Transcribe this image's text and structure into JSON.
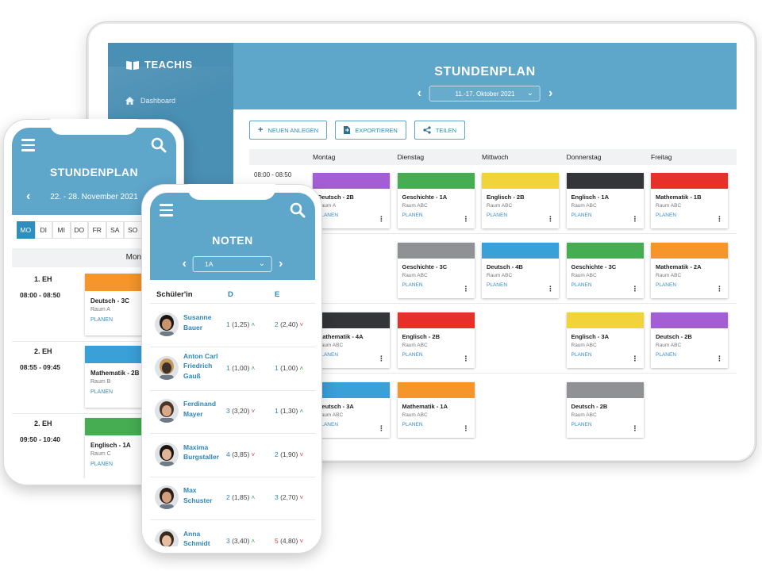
{
  "colors": {
    "primary": "#5ea6ca",
    "sidebar": "#4a8fb4",
    "link": "#2d86b7",
    "purple": "#a35ed5",
    "green": "#46ad53",
    "yellow": "#f1d33a",
    "dark": "#333539",
    "red": "#e8302b",
    "gray": "#8f9194",
    "blue": "#3aa0d8",
    "orange": "#f5952a"
  },
  "tablet": {
    "logo": "TEACHIS",
    "nav_dashboard": "Dashboard",
    "title": "STUNDENPLAN",
    "week": "11.-17. Oktober 2021",
    "toolbar": {
      "new": "NEUEN ANLEGEN",
      "export": "EXPORTIEREN",
      "share": "TEILEN"
    },
    "days": [
      "Montag",
      "Dienstag",
      "Mittwoch",
      "Donnerstag",
      "Freitag"
    ],
    "first_time": "08:00 - 08:50",
    "cards": [
      {
        "name": "Deutsch - 2B",
        "room": "Raum A",
        "plan": "PLANEN",
        "color": "purple"
      },
      {
        "name": "Geschichte - 1A",
        "room": "Raum ABC",
        "plan": "PLANEN",
        "color": "green"
      },
      {
        "name": "Englisch - 2B",
        "room": "Raum ABC",
        "plan": "PLANEN",
        "color": "yellow"
      },
      {
        "name": "Englisch - 1A",
        "room": "Raum ABC",
        "plan": "PLANEN",
        "color": "dark"
      },
      {
        "name": "Mathematik - 1B",
        "room": "Raum ABC",
        "plan": "PLANEN",
        "color": "red"
      },
      {
        "name": "Geschichte - 3C",
        "room": "Raum ABC",
        "plan": "PLANEN",
        "color": "gray"
      },
      {
        "name": "Deutsch - 4B",
        "room": "Raum ABC",
        "plan": "PLANEN",
        "color": "blue"
      },
      {
        "name": "Geschichte - 3C",
        "room": "Raum ABC",
        "plan": "PLANEN",
        "color": "green"
      },
      {
        "name": "Mathematik - 2A",
        "room": "Raum ABC",
        "plan": "PLANEN",
        "color": "orange"
      },
      {
        "name": "Mathematik - 4A",
        "room": "Raum ABC",
        "plan": "PLANEN",
        "color": "dark"
      },
      {
        "name": "Englisch - 2B",
        "room": "Raum ABC",
        "plan": "PLANEN",
        "color": "red"
      },
      {
        "name": "Englisch - 3A",
        "room": "Raum ABC",
        "plan": "PLANEN",
        "color": "yellow"
      },
      {
        "name": "Deutsch - 2B",
        "room": "Raum ABC",
        "plan": "PLANEN",
        "color": "purple"
      },
      {
        "name": "Deutsch - 3A",
        "room": "Raum ABC",
        "plan": "PLANEN",
        "color": "blue"
      },
      {
        "name": "Mathematik - 1A",
        "room": "Raum ABC",
        "plan": "PLANEN",
        "color": "orange"
      },
      {
        "name": "Deutsch - 2B",
        "room": "Raum ABC",
        "plan": "PLANEN",
        "color": "gray"
      }
    ]
  },
  "phone1": {
    "title": "STUNDENPLAN",
    "range": "22. - 28. November 2021",
    "days": [
      "MO",
      "DI",
      "MI",
      "DO",
      "FR",
      "SA",
      "SO"
    ],
    "active_day": "MO",
    "day_label": "Montag",
    "slots": [
      {
        "eh": "1. EH",
        "time": "08:00 - 08:50",
        "name": "Deutsch - 3C",
        "room": "Raum A",
        "plan": "PLANEN",
        "color": "orange"
      },
      {
        "eh": "2. EH",
        "time": "08:55 - 09:45",
        "name": "Mathematik - 2B",
        "room": "Raum B",
        "plan": "PLANEN",
        "color": "blue"
      },
      {
        "eh": "2. EH",
        "time": "09:50 - 10:40",
        "name": "Englisch - 1A",
        "room": "Raum C",
        "plan": "PLANEN",
        "color": "green"
      }
    ]
  },
  "phone2": {
    "title": "NOTEN",
    "class": "1A",
    "col_student": "Schüler'in",
    "col_d": "D",
    "col_e": "E",
    "students": [
      {
        "line1": "Susanne",
        "line2": "Bauer",
        "line3": "",
        "d": "1",
        "d_avg": "(1,25)",
        "d_trend": "up",
        "e": "2",
        "e_avg": "(2,40)",
        "e_trend": "down",
        "e_bad": false,
        "skin": "#c8946e",
        "hair": "#1b1512"
      },
      {
        "line1": "Anton Carl",
        "line2": "Friedrich",
        "line3": "Gauß",
        "d": "1",
        "d_avg": "(1,00)",
        "d_trend": "up",
        "e": "1",
        "e_avg": "(1,00)",
        "e_trend": "up",
        "e_bad": false,
        "skin": "#3d3129",
        "hair": "#c39a5a"
      },
      {
        "line1": "Ferdinand",
        "line2": "Mayer",
        "line3": "",
        "d": "3",
        "d_avg": "(3,20)",
        "d_trend": "down",
        "e": "1",
        "e_avg": "(1,30)",
        "e_trend": "up",
        "e_bad": false,
        "skin": "#d9a889",
        "hair": "#4a3528"
      },
      {
        "line1": "Maxima",
        "line2": "Burgstaller",
        "line3": "",
        "d": "4",
        "d_avg": "(3,85)",
        "d_trend": "down",
        "e": "2",
        "e_avg": "(1,90)",
        "e_trend": "down",
        "e_bad": false,
        "skin": "#e0b497",
        "hair": "#1a1412"
      },
      {
        "line1": "Max",
        "line2": "Schuster",
        "line3": "",
        "d": "2",
        "d_avg": "(1,85)",
        "d_trend": "up",
        "e": "3",
        "e_avg": "(2,70)",
        "e_trend": "down",
        "e_bad": false,
        "skin": "#d2a07e",
        "hair": "#2a1e16"
      },
      {
        "line1": "Anna",
        "line2": "Schmidt",
        "line3": "",
        "d": "3",
        "d_avg": "(3,40)",
        "d_trend": "up",
        "e": "5",
        "e_avg": "(4,80)",
        "e_trend": "down",
        "e_bad": true,
        "skin": "#e6bfa1",
        "hair": "#3b2a1c"
      }
    ]
  }
}
